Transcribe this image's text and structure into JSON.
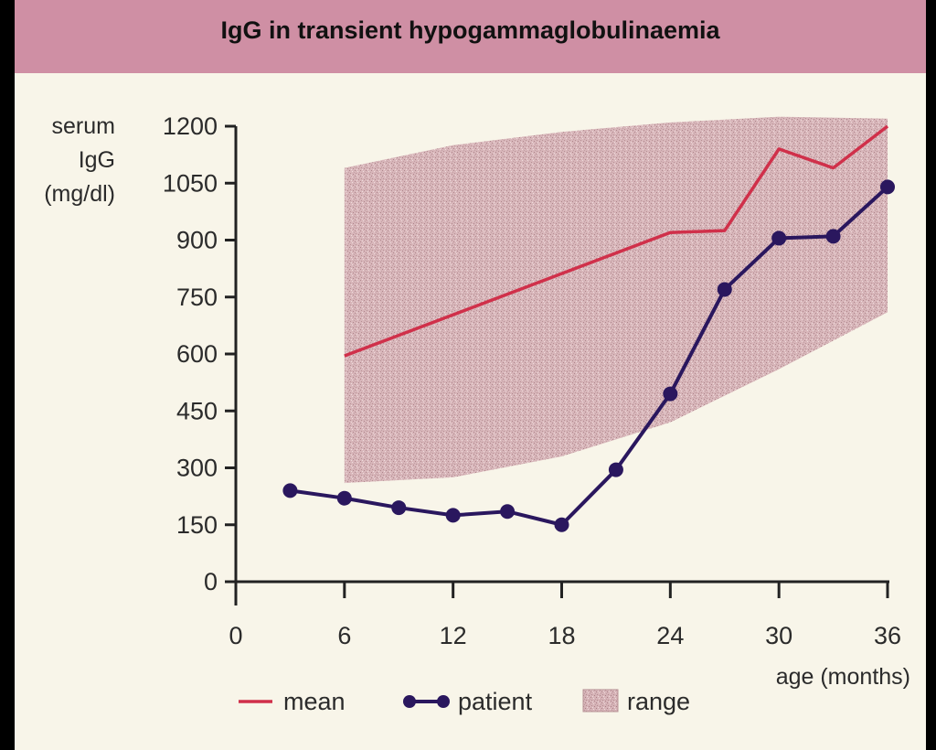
{
  "chart_data": {
    "type": "line",
    "title": "IgG in transient hypogammaglobulinaemia",
    "ylabel_lines": [
      "serum",
      "IgG",
      "(mg/dl)"
    ],
    "xlabel": "age (months)",
    "xlim": [
      0,
      36
    ],
    "ylim": [
      0,
      1200
    ],
    "xticks": [
      0,
      6,
      12,
      18,
      24,
      30,
      36
    ],
    "yticks": [
      0,
      150,
      300,
      450,
      600,
      750,
      900,
      1050,
      1200
    ],
    "grid": false,
    "legend_position": "bottom",
    "series": [
      {
        "name": "mean",
        "color": "#d0304a",
        "marker": "none",
        "x": [
          6,
          24,
          27,
          30,
          33,
          36
        ],
        "y": [
          595,
          920,
          925,
          1140,
          1090,
          1200
        ]
      },
      {
        "name": "patient",
        "color": "#2a175e",
        "marker": "circle",
        "x": [
          3,
          6,
          9,
          12,
          15,
          18,
          21,
          24,
          27,
          30,
          33,
          36
        ],
        "y": [
          240,
          220,
          195,
          175,
          185,
          150,
          295,
          495,
          770,
          905,
          910,
          1040
        ]
      }
    ],
    "range": {
      "name": "range",
      "color": "#c9a3a8",
      "x": [
        6,
        12,
        18,
        24,
        30,
        36
      ],
      "upper": [
        1090,
        1150,
        1185,
        1210,
        1225,
        1220
      ],
      "lower": [
        260,
        275,
        330,
        420,
        560,
        710
      ]
    }
  }
}
